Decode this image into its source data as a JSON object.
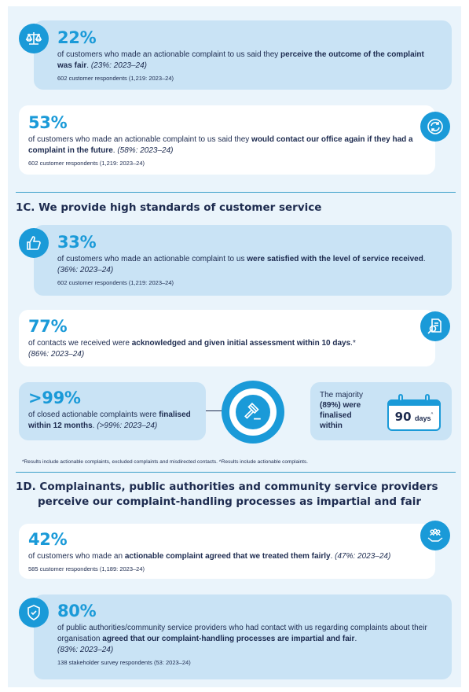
{
  "cards": {
    "c1": {
      "pct": "22%",
      "pre": "of customers who made an actionable complaint to us said they ",
      "bold": "perceive the outcome of the complaint was fair",
      "post": ". ",
      "prev": "(23%: 2023–24)",
      "resp": "602 customer respondents (1,219: 2023–24)"
    },
    "c2": {
      "pct": "53%",
      "pre": "of customers who made an actionable complaint to us said they ",
      "bold": "would contact our office again if they had a complaint in the future",
      "post": ". ",
      "prev": "(58%: 2023–24)",
      "resp": "602 customer respondents (1,219: 2023–24)"
    },
    "c3": {
      "pct": "33%",
      "pre": "of customers who made an actionable complaint to us ",
      "bold": "were satisfied with the level of service received",
      "post": ". ",
      "prev": "(36%: 2023–24)",
      "resp": "602 customer respondents (1,219: 2023–24)"
    },
    "c4": {
      "pct": "77%",
      "pre": "of contacts we received were ",
      "bold": "acknowledged and given initial assessment within 10 days",
      "post": ".*",
      "prev": "(86%: 2023–24)"
    },
    "c5": {
      "pct": ">99%",
      "pre": "of closed actionable complaints were ",
      "bold": "finalised within 12 months",
      "post": ". ",
      "prev": "(>99%: 2023–24)"
    },
    "c6": {
      "pct": "42%",
      "pre": "of customers who made an ",
      "bold": "actionable complaint agreed that we treated them fairly",
      "post": ". ",
      "prev": "(47%: 2023–24)",
      "resp": "585 customer respondents (1,189: 2023–24)"
    },
    "c7": {
      "pct": "80%",
      "pre": "of public authorities/community service providers who had contact with us regarding complaints about their organisation ",
      "bold": "agreed that our complaint-handling processes are impartial and fair",
      "post": ". ",
      "prev": "(83%: 2023–24)",
      "resp": "138 stakeholder survey respondents (53: 2023–24)"
    }
  },
  "majority": {
    "line1": "The majority",
    "line2": "(89%) were",
    "line3": "finalised",
    "line4": "within",
    "days_num": "90",
    "days_unit": "days",
    "days_mark": "^"
  },
  "headings": {
    "h1c": "1C. We provide high standards of customer service",
    "h1d_line1": "1D. Complainants, public authorities and community service providers",
    "h1d_line2": "perceive our complaint-handling processes as impartial and fair"
  },
  "footnote": "*Results include actionable complaints, excluded complaints and misdirected contacts. ^Results include actionable complaints.",
  "colors": {
    "accent": "#1a9ad8",
    "navy": "#1d2b4f",
    "card_blue": "#c9e3f5",
    "page_bg": "#eaf4fb"
  },
  "icons": [
    "scales-icon",
    "refresh-icon",
    "thumbs-up-icon",
    "document-search-icon",
    "gavel-icon",
    "calendar-icon",
    "hands-people-icon",
    "shield-check-icon"
  ]
}
